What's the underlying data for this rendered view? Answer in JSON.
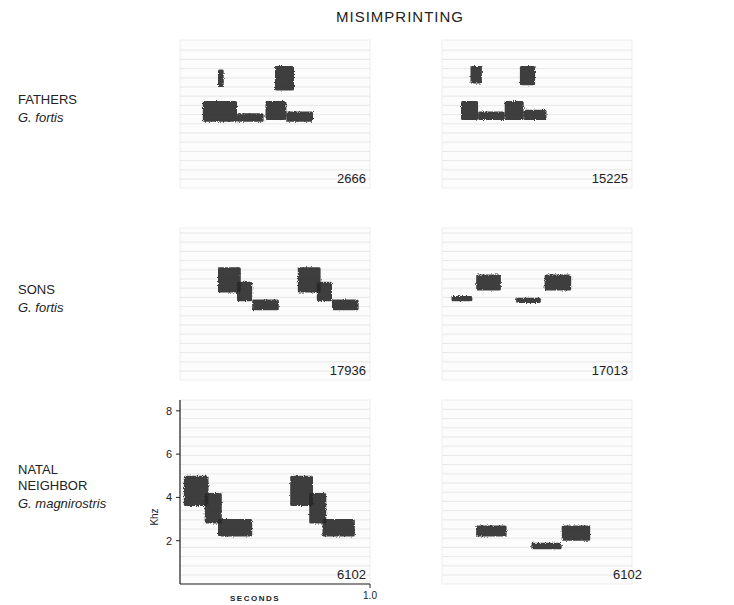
{
  "title": "MISIMPRINTING",
  "rows": [
    {
      "label": "FATHERS",
      "species": "G. fortis"
    },
    {
      "label": "SONS",
      "species": "G. fortis"
    },
    {
      "label": "NATAL NEIGHBOR",
      "species": "G. magnirostris"
    }
  ],
  "chart_data": [
    {
      "type": "spectrogram",
      "title": "2666",
      "color": "#262626",
      "xlim": [
        0,
        1.0
      ],
      "ylim": [
        0,
        8.5
      ],
      "tick_labels": false,
      "notes": [
        {
          "t": [
            0.2,
            0.23
          ],
          "f": [
            5.8,
            6.8
          ]
        },
        {
          "t": [
            0.5,
            0.6
          ],
          "f": [
            5.6,
            7.0
          ]
        },
        {
          "t": [
            0.12,
            0.3
          ],
          "f": [
            3.8,
            5.0
          ]
        },
        {
          "t": [
            0.3,
            0.44
          ],
          "f": [
            3.8,
            4.3
          ]
        },
        {
          "t": [
            0.45,
            0.56
          ],
          "f": [
            3.9,
            5.0
          ]
        },
        {
          "t": [
            0.56,
            0.7
          ],
          "f": [
            3.8,
            4.4
          ]
        }
      ]
    },
    {
      "type": "spectrogram",
      "title": "15225",
      "color": "#262626",
      "xlim": [
        0,
        1.0
      ],
      "ylim": [
        0,
        8.5
      ],
      "tick_labels": false,
      "notes": [
        {
          "t": [
            0.15,
            0.21
          ],
          "f": [
            6.0,
            7.0
          ]
        },
        {
          "t": [
            0.41,
            0.49
          ],
          "f": [
            5.9,
            7.0
          ]
        },
        {
          "t": [
            0.1,
            0.19
          ],
          "f": [
            3.9,
            5.0
          ]
        },
        {
          "t": [
            0.19,
            0.33
          ],
          "f": [
            3.9,
            4.4
          ]
        },
        {
          "t": [
            0.33,
            0.43
          ],
          "f": [
            3.9,
            5.0
          ]
        },
        {
          "t": [
            0.43,
            0.55
          ],
          "f": [
            3.9,
            4.5
          ]
        }
      ]
    },
    {
      "type": "spectrogram",
      "title": "17936",
      "color": "#262626",
      "xlim": [
        0,
        1.0
      ],
      "ylim": [
        0,
        8.5
      ],
      "tick_labels": false,
      "notes": [
        {
          "t": [
            0.2,
            0.32
          ],
          "f": [
            4.9,
            6.3
          ]
        },
        {
          "t": [
            0.3,
            0.38
          ],
          "f": [
            4.4,
            5.5
          ]
        },
        {
          "t": [
            0.38,
            0.52
          ],
          "f": [
            3.9,
            4.5
          ]
        },
        {
          "t": [
            0.62,
            0.74
          ],
          "f": [
            4.9,
            6.3
          ]
        },
        {
          "t": [
            0.72,
            0.8
          ],
          "f": [
            4.4,
            5.5
          ]
        },
        {
          "t": [
            0.8,
            0.94
          ],
          "f": [
            3.9,
            4.5
          ]
        }
      ]
    },
    {
      "type": "spectrogram",
      "title": "17013",
      "color": "#262626",
      "xlim": [
        0,
        1.0
      ],
      "ylim": [
        0,
        8.5
      ],
      "tick_labels": false,
      "notes": [
        {
          "t": [
            0.05,
            0.16
          ],
          "f": [
            4.4,
            4.7
          ]
        },
        {
          "t": [
            0.18,
            0.31
          ],
          "f": [
            5.0,
            5.9
          ]
        },
        {
          "t": [
            0.39,
            0.52
          ],
          "f": [
            4.3,
            4.6
          ]
        },
        {
          "t": [
            0.54,
            0.68
          ],
          "f": [
            5.0,
            5.9
          ]
        }
      ]
    },
    {
      "type": "spectrogram",
      "title": "6102",
      "color": "#262626",
      "xlim": [
        0,
        1.0
      ],
      "ylim": [
        0,
        8.5
      ],
      "xlabel": "SECONDS",
      "ylabel": "Khz",
      "xticks": [
        {
          "value": 1.0,
          "label": "1.0"
        }
      ],
      "yticks": [
        2,
        4,
        6,
        8
      ],
      "notes": [
        {
          "t": [
            0.02,
            0.15
          ],
          "f": [
            3.6,
            5.0
          ]
        },
        {
          "t": [
            0.13,
            0.22
          ],
          "f": [
            2.8,
            4.2
          ]
        },
        {
          "t": [
            0.2,
            0.38
          ],
          "f": [
            2.2,
            3.0
          ]
        },
        {
          "t": [
            0.58,
            0.7
          ],
          "f": [
            3.6,
            5.0
          ]
        },
        {
          "t": [
            0.68,
            0.77
          ],
          "f": [
            2.8,
            4.2
          ]
        },
        {
          "t": [
            0.75,
            0.92
          ],
          "f": [
            2.2,
            3.0
          ]
        }
      ]
    },
    {
      "type": "spectrogram",
      "title": "6102",
      "color": "#262626",
      "xlim": [
        0,
        1.0
      ],
      "ylim": [
        0,
        8.5
      ],
      "tick_labels": false,
      "notes": [
        {
          "t": [
            0.18,
            0.34
          ],
          "f": [
            2.2,
            2.7
          ]
        },
        {
          "t": [
            0.47,
            0.63
          ],
          "f": [
            1.6,
            1.9
          ]
        },
        {
          "t": [
            0.63,
            0.78
          ],
          "f": [
            2.0,
            2.7
          ]
        }
      ]
    }
  ]
}
